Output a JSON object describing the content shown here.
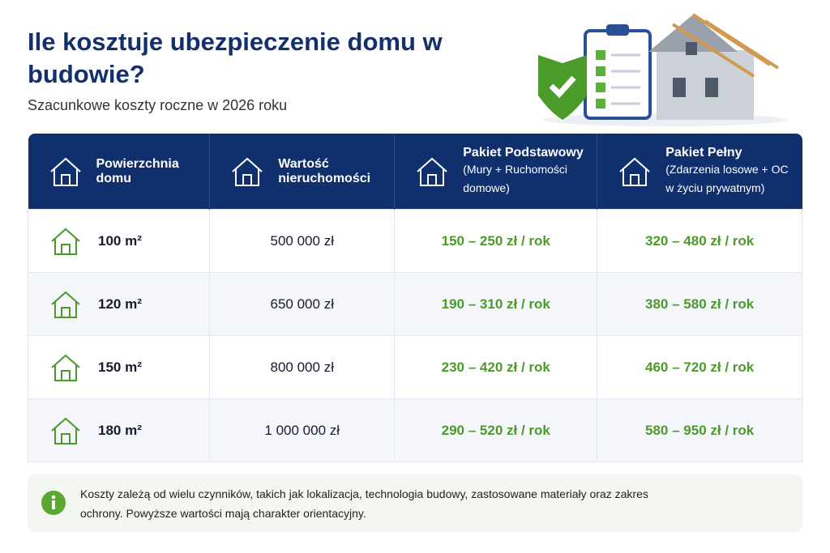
{
  "header": {
    "title": "Ile kosztuje ubezpieczenie domu w budowie?",
    "subtitle": "Szacunkowe koszty roczne w 2026 roku"
  },
  "table": {
    "columns": [
      {
        "title": "Powierzchnia domu"
      },
      {
        "title": "Wartość nieruchomości"
      },
      {
        "title": "Pakiet Podstawowy",
        "subtitle": "(Mury + Ruchomości domowe)"
      },
      {
        "title": "Pakiet Pełny",
        "subtitle": "(Zdarzenia losowe + OC w życiu prywatnym)"
      }
    ],
    "rows": [
      [
        "100 m²",
        "500 000 zł",
        "150 – 250 zł / rok",
        "320 – 480 zł / rok"
      ],
      [
        "120 m²",
        "650 000 zł",
        "190 – 310 zł / rok",
        "380 – 580 zł / rok"
      ],
      [
        "150 m²",
        "800 000 zł",
        "230 – 420 zł / rok",
        "460 – 720 zł / rok"
      ],
      [
        "180 m²",
        "1 000 000 zł",
        "290 – 520 zł / rok",
        "580 – 950 zł / rok"
      ]
    ]
  },
  "note": {
    "text": "Koszty zależą od wielu czynników, takich jak lokalizacja, technologia budowy, zastosowane materiały oraz zakres ochrony. Powyższe wartości mają charakter orientacyjny."
  }
}
